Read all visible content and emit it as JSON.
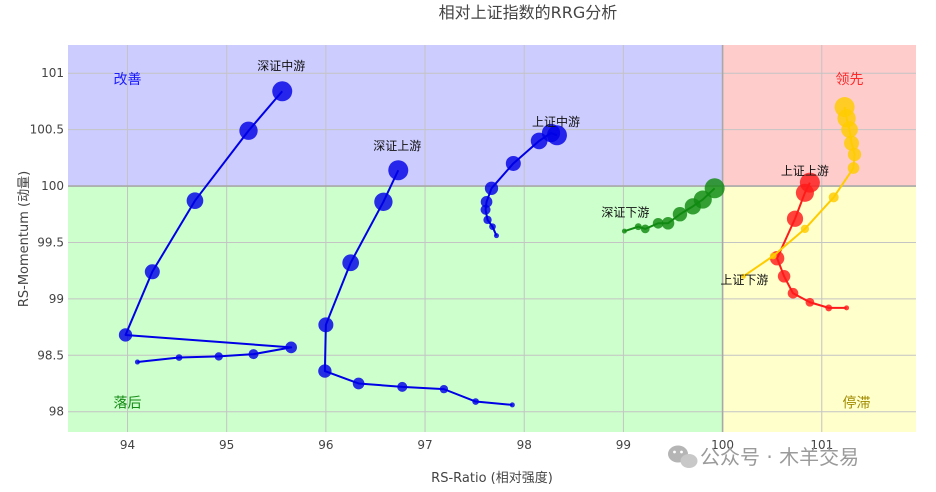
{
  "chart_data": {
    "type": "scatter",
    "title": "相对上证指数的RRG分析",
    "xlabel": "RS-Ratio (相对强度)",
    "ylabel": "RS-Momentum (动量)",
    "xlim": [
      93.4,
      101.95
    ],
    "ylim": [
      97.82,
      101.25
    ],
    "center": [
      100,
      100
    ],
    "x_ticks": [
      94,
      95,
      96,
      97,
      98,
      99,
      100,
      101
    ],
    "y_ticks": [
      98,
      98.5,
      99,
      99.5,
      100,
      100.5,
      101
    ],
    "y_tick_labels": [
      "98",
      "98.5",
      "99",
      "99.5",
      "100",
      "100.5",
      "101"
    ],
    "grid": true,
    "quadrants": [
      {
        "name": "改善",
        "color": "#1a1aff",
        "fill": "#ccccff",
        "x_range": [
          93.4,
          100
        ],
        "y_range": [
          100,
          101.25
        ],
        "label_at": [
          94,
          100.95
        ]
      },
      {
        "name": "领先",
        "color": "#ff2a2a",
        "fill": "#ffcccc",
        "x_range": [
          100,
          101.95
        ],
        "y_range": [
          100,
          101.25
        ],
        "label_at": [
          101.28,
          100.95
        ]
      },
      {
        "name": "落后",
        "color": "#138a13",
        "fill": "#ccffcc",
        "x_range": [
          93.4,
          100
        ],
        "y_range": [
          97.82,
          100
        ],
        "label_at": [
          94,
          98.08
        ]
      },
      {
        "name": "停滞",
        "color": "#a08a00",
        "fill": "#ffffcc",
        "x_range": [
          100,
          101.95
        ],
        "y_range": [
          97.82,
          100
        ],
        "label_at": [
          101.35,
          98.08
        ]
      }
    ],
    "series": [
      {
        "name": "深证中游",
        "color": "#0000e6",
        "label_at": [
          95.55,
          101.03
        ],
        "points": [
          [
            94.1,
            98.44
          ],
          [
            94.52,
            98.48
          ],
          [
            94.92,
            98.49
          ],
          [
            95.27,
            98.51
          ],
          [
            95.65,
            98.57
          ],
          [
            93.98,
            98.68
          ],
          [
            94.25,
            99.24
          ],
          [
            94.68,
            99.87
          ],
          [
            95.22,
            100.49
          ],
          [
            95.56,
            100.84
          ]
        ]
      },
      {
        "name": "深证上游",
        "color": "#0000e6",
        "label_at": [
          96.72,
          100.32
        ],
        "points": [
          [
            97.88,
            98.06
          ],
          [
            97.51,
            98.09
          ],
          [
            97.19,
            98.2
          ],
          [
            96.77,
            98.22
          ],
          [
            96.33,
            98.25
          ],
          [
            95.99,
            98.36
          ],
          [
            96.0,
            98.77
          ],
          [
            96.25,
            99.32
          ],
          [
            96.58,
            99.86
          ],
          [
            96.73,
            100.14
          ]
        ]
      },
      {
        "name": "上证中游",
        "color": "#0000e6",
        "label_at": [
          98.32,
          100.53
        ],
        "points": [
          [
            97.72,
            99.56
          ],
          [
            97.68,
            99.64
          ],
          [
            97.63,
            99.7
          ],
          [
            97.61,
            99.79
          ],
          [
            97.62,
            99.86
          ],
          [
            97.67,
            99.98
          ],
          [
            97.89,
            100.2
          ],
          [
            98.15,
            100.4
          ],
          [
            98.27,
            100.47
          ],
          [
            98.33,
            100.45
          ]
        ]
      },
      {
        "name": "深证下游",
        "color": "#118a11",
        "label_at": [
          99.02,
          99.73
        ],
        "points": [
          [
            99.01,
            99.6
          ],
          [
            99.15,
            99.64
          ],
          [
            99.22,
            99.62
          ],
          [
            99.35,
            99.67
          ],
          [
            99.45,
            99.67
          ],
          [
            99.57,
            99.75
          ],
          [
            99.7,
            99.82
          ],
          [
            99.8,
            99.88
          ],
          [
            99.92,
            99.98
          ]
        ]
      },
      {
        "name": "上证上游",
        "color": "#ff1a1a",
        "label_at": [
          100.83,
          100.1
        ],
        "points": [
          [
            101.25,
            98.92
          ],
          [
            101.07,
            98.92
          ],
          [
            100.88,
            98.97
          ],
          [
            100.71,
            99.05
          ],
          [
            100.62,
            99.2
          ],
          [
            100.55,
            99.36
          ],
          [
            100.73,
            99.71
          ],
          [
            100.83,
            99.94
          ],
          [
            100.88,
            100.03
          ]
        ]
      },
      {
        "name": "上证下游",
        "color": "#ffcc00",
        "label_at": [
          100.22,
          99.13
        ],
        "points": [
          [
            100.21,
            99.2
          ],
          [
            100.51,
            99.38
          ],
          [
            100.83,
            99.62
          ],
          [
            101.12,
            99.9
          ],
          [
            101.32,
            100.16
          ],
          [
            101.33,
            100.28
          ],
          [
            101.3,
            100.38
          ],
          [
            101.28,
            100.5
          ],
          [
            101.25,
            100.6
          ],
          [
            101.23,
            100.7
          ]
        ]
      }
    ]
  },
  "watermark": {
    "icon": "wechat-icon",
    "text": "公众号 · 木羊交易"
  }
}
